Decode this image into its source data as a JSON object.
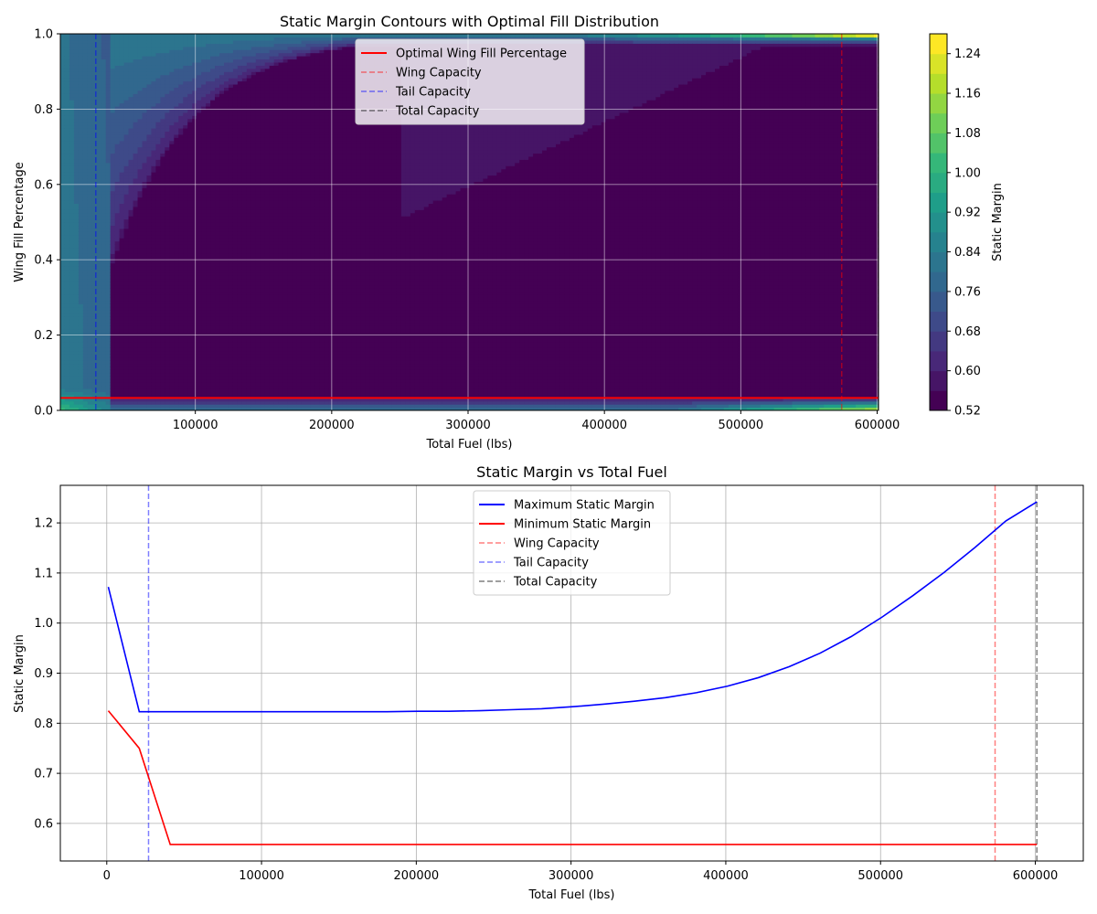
{
  "chart_data": [
    {
      "type": "heatmap",
      "title": "Static Margin Contours with Optimal Fill Distribution",
      "xlabel": "Total Fuel (lbs)",
      "ylabel": "Wing Fill Percentage",
      "xlim": [
        1000,
        601000
      ],
      "ylim": [
        0,
        1
      ],
      "xticks": [
        100000,
        200000,
        300000,
        400000,
        500000,
        600000
      ],
      "yticks": [
        "0.0",
        "0.2",
        "0.4",
        "0.6",
        "0.8",
        "1.0"
      ],
      "grid": true,
      "legend_position": "upper center",
      "colorbar": {
        "label": "Static Margin",
        "range": [
          0.52,
          1.28
        ],
        "levels": 19,
        "ticks": [
          "0.52",
          "0.60",
          "0.68",
          "0.76",
          "0.84",
          "0.92",
          "1.00",
          "1.08",
          "1.16",
          "1.24"
        ],
        "colormap": "viridis"
      },
      "optimal_wing_fill": 0.033,
      "capacity_lines": [
        {
          "name": "Wing Capacity",
          "x": 574000,
          "color": "#ff0000"
        },
        {
          "name": "Tail Capacity",
          "x": 27000,
          "color": "#0000ff"
        },
        {
          "name": "Total Capacity",
          "x": 601000,
          "color": "#000000"
        }
      ],
      "legend": [
        {
          "name": "Optimal Wing Fill Percentage",
          "color": "#ff0000",
          "style": "solid"
        },
        {
          "name": "Wing Capacity",
          "color": "#ff0000",
          "style": "dashed"
        },
        {
          "name": "Tail Capacity",
          "color": "#0000ff",
          "style": "dashed"
        },
        {
          "name": "Total Capacity",
          "color": "#000000",
          "style": "dashed"
        }
      ]
    },
    {
      "type": "line",
      "title": "Static Margin vs Total Fuel",
      "xlabel": "Total Fuel (lbs)",
      "ylabel": "Static Margin",
      "xlim": [
        -30000,
        631000
      ],
      "ylim": [
        0.525,
        1.275
      ],
      "xticks": [
        "0",
        "100000",
        "200000",
        "300000",
        "400000",
        "500000",
        "600000"
      ],
      "yticks": [
        "0.6",
        "0.7",
        "0.8",
        "0.9",
        "1.0",
        "1.1",
        "1.2"
      ],
      "grid": true,
      "legend_position": "upper center",
      "x": [
        1000,
        21000,
        41000,
        61000,
        81000,
        101000,
        121000,
        141000,
        161000,
        181000,
        201000,
        221000,
        241000,
        261000,
        281000,
        301000,
        321000,
        341000,
        361000,
        381000,
        401000,
        421000,
        441000,
        461000,
        481000,
        501000,
        521000,
        541000,
        561000,
        581000,
        601000
      ],
      "series": [
        {
          "name": "Maximum Static Margin",
          "color": "#0000ff",
          "values": [
            1.072,
            0.823,
            0.823,
            0.823,
            0.823,
            0.823,
            0.823,
            0.823,
            0.823,
            0.823,
            0.824,
            0.824,
            0.825,
            0.827,
            0.829,
            0.833,
            0.838,
            0.844,
            0.851,
            0.861,
            0.874,
            0.891,
            0.913,
            0.94,
            0.973,
            1.012,
            1.055,
            1.101,
            1.151,
            1.204,
            1.242
          ]
        },
        {
          "name": "Minimum Static Margin",
          "color": "#ff0000",
          "values": [
            0.825,
            0.75,
            0.558,
            0.558,
            0.558,
            0.558,
            0.558,
            0.558,
            0.558,
            0.558,
            0.558,
            0.558,
            0.558,
            0.558,
            0.558,
            0.558,
            0.558,
            0.558,
            0.558,
            0.558,
            0.558,
            0.558,
            0.558,
            0.558,
            0.558,
            0.558,
            0.558,
            0.558,
            0.558,
            0.558,
            0.558
          ]
        }
      ],
      "capacity_lines": [
        {
          "name": "Wing Capacity",
          "x": 574000,
          "color": "#ff0000"
        },
        {
          "name": "Tail Capacity",
          "x": 27000,
          "color": "#0000ff"
        },
        {
          "name": "Total Capacity",
          "x": 601000,
          "color": "#000000"
        }
      ],
      "legend": [
        {
          "name": "Maximum Static Margin",
          "color": "#0000ff",
          "style": "solid"
        },
        {
          "name": "Minimum Static Margin",
          "color": "#ff0000",
          "style": "solid"
        },
        {
          "name": "Wing Capacity",
          "color": "#ff0000",
          "style": "dashed"
        },
        {
          "name": "Tail Capacity",
          "color": "#0000ff",
          "style": "dashed"
        },
        {
          "name": "Total Capacity",
          "color": "#000000",
          "style": "dashed"
        }
      ]
    }
  ]
}
